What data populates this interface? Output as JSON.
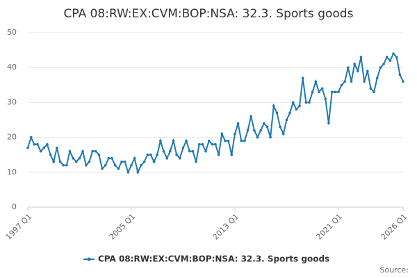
{
  "chart_data": {
    "type": "line",
    "title": "CPA 08:RW:EX:CVM:BOP:NSA: 32.3. Sports goods",
    "source": "Source:",
    "categories": [
      "1997 Q1",
      null,
      null,
      null,
      null,
      null,
      null,
      null,
      null,
      null,
      null,
      null,
      null,
      null,
      null,
      null,
      null,
      null,
      null,
      null,
      null,
      null,
      null,
      null,
      null,
      null,
      null,
      null,
      null,
      null,
      null,
      null,
      "2005 Q1",
      null,
      null,
      null,
      null,
      null,
      null,
      null,
      null,
      null,
      null,
      null,
      null,
      null,
      null,
      null,
      null,
      null,
      null,
      null,
      null,
      null,
      null,
      null,
      null,
      null,
      null,
      null,
      null,
      null,
      null,
      null,
      "2013 Q1",
      null,
      null,
      null,
      null,
      null,
      null,
      null,
      null,
      null,
      null,
      null,
      null,
      null,
      null,
      null,
      null,
      null,
      null,
      null,
      null,
      null,
      null,
      null,
      null,
      null,
      null,
      null,
      null,
      null,
      null,
      null,
      "2021 Q1",
      null,
      null,
      null,
      null,
      null,
      null,
      null,
      null,
      null,
      null,
      null,
      null,
      null,
      null,
      null,
      null,
      null,
      null,
      null,
      "2026 Q1"
    ],
    "series": [
      {
        "name": "CPA 08:RW:EX:CVM:BOP:NSA: 32.3. Sports goods",
        "color": "#1f78b4",
        "values": [
          17,
          20,
          18,
          18,
          16,
          17,
          18,
          15,
          13,
          17,
          13,
          12,
          12,
          16,
          14,
          13,
          14,
          16,
          12,
          13,
          16,
          16,
          15,
          11,
          12,
          14,
          14,
          12,
          11,
          13,
          13,
          10,
          12,
          14,
          10,
          12,
          13,
          15,
          15,
          13,
          15,
          19,
          16,
          14,
          16,
          19,
          15,
          14,
          17,
          19,
          16,
          16,
          13,
          18,
          18,
          16,
          19,
          18,
          18,
          15,
          21,
          19,
          19,
          15,
          21,
          24,
          19,
          19,
          22,
          26,
          22,
          20,
          22,
          24,
          23,
          20,
          29,
          27,
          23,
          21,
          25,
          27,
          30,
          28,
          29,
          37,
          30,
          30,
          33,
          36,
          33,
          34,
          31,
          24,
          33,
          33,
          33,
          35,
          36,
          40,
          36,
          41,
          39,
          43,
          36,
          39,
          34,
          33,
          37,
          40,
          41,
          43,
          42,
          44,
          43,
          38,
          36
        ]
      }
    ],
    "ylim": [
      0,
      50
    ],
    "yticks": [
      0,
      10,
      20,
      30,
      40,
      50
    ],
    "grid": true
  }
}
